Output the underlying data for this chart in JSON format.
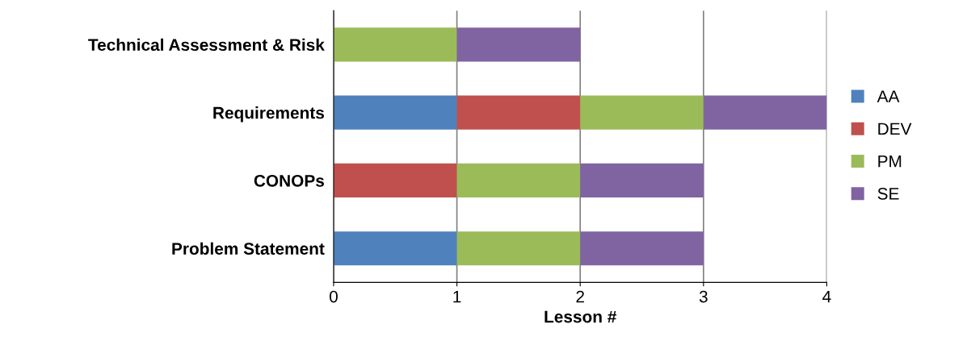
{
  "chart_data": {
    "type": "bar",
    "orientation": "horizontal",
    "stacked": true,
    "xlabel": "Lesson #",
    "categories": [
      "Technical Assessment & Risk",
      "Requirements",
      "CONOPs",
      "Problem Statement"
    ],
    "series": [
      {
        "name": "AA",
        "color": "#4f81bd",
        "values": [
          0,
          1,
          0,
          1
        ]
      },
      {
        "name": "DEV",
        "color": "#c0504d",
        "values": [
          0,
          1,
          1,
          0
        ]
      },
      {
        "name": "PM",
        "color": "#9bbb59",
        "values": [
          1,
          1,
          1,
          1
        ]
      },
      {
        "name": "SE",
        "color": "#8064a2",
        "values": [
          1,
          1,
          1,
          1
        ]
      }
    ],
    "xlim": [
      0,
      4
    ],
    "xticks": [
      0,
      1,
      2,
      3,
      4
    ],
    "grid": "x",
    "legend": "right"
  }
}
